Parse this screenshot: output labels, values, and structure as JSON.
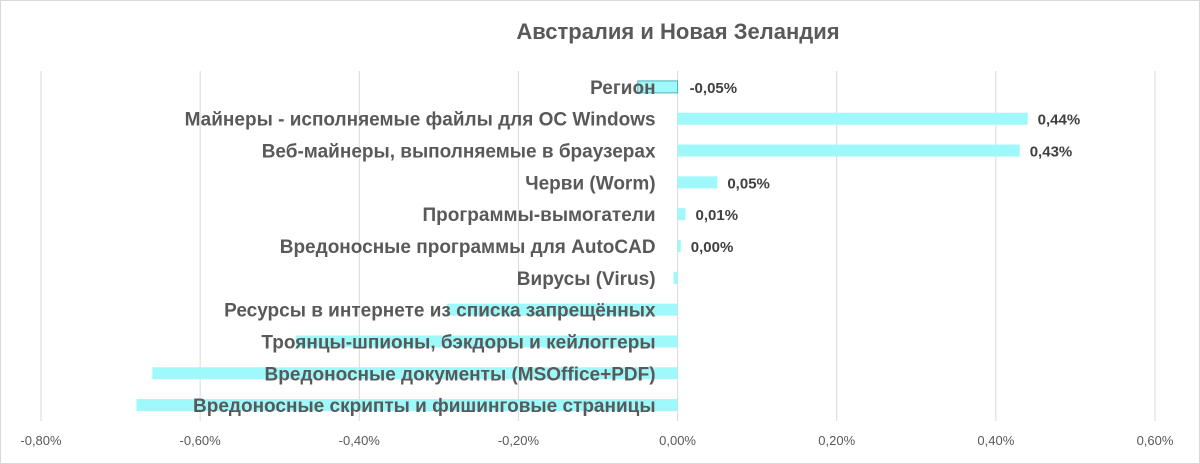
{
  "chart_data": {
    "type": "bar",
    "orientation": "horizontal",
    "title": "Австралия и Новая Зеландия",
    "xlabel": "",
    "ylabel": "",
    "xlim": [
      -0.8,
      0.6
    ],
    "grid": true,
    "bar_color": "#9ff8fa",
    "region_bar_edge": "#4fb3b6",
    "ticks": [
      "-0,80%",
      "-0,60%",
      "-0,40%",
      "-0,20%",
      "0,00%",
      "0,20%",
      "0,40%",
      "0,60%"
    ],
    "tick_values": [
      -0.8,
      -0.6,
      -0.4,
      -0.2,
      0.0,
      0.2,
      0.4,
      0.6
    ],
    "categories": [
      "Регион",
      "Майнеры - исполняемые файлы для ОС Windows",
      "Веб-майнеры, выполняемые в браузерах",
      "Черви (Worm)",
      "Программы-вымогатели",
      "Вредоносные программы для AutoCAD",
      "Вирусы (Virus)",
      "Ресурсы в интернете из списка запрещённых",
      "Троянцы-шпионы, бэкдоры и кейлоггеры",
      "Вредоносные документы (MSOffice+PDF)",
      "Вредоносные скрипты и фишинговые страницы"
    ],
    "values": [
      -0.05,
      0.44,
      0.43,
      0.05,
      0.01,
      0.004,
      -0.005,
      -0.29,
      -0.48,
      -0.66,
      -0.68
    ],
    "data_labels": [
      "-0,05%",
      "0,44%",
      "0,43%",
      "0,05%",
      "0,01%",
      "0,00%",
      "",
      "",
      "",
      "",
      ""
    ]
  }
}
